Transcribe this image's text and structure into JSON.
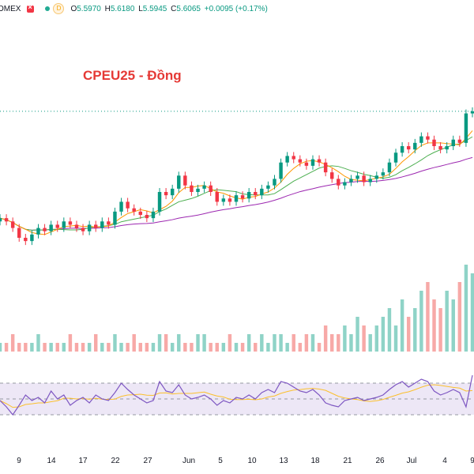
{
  "topbar": {
    "exchange": "OMEX",
    "d_badge": "D",
    "open_label": "O",
    "open": "5.5970",
    "high_label": "H",
    "high": "5.6180",
    "low_label": "L",
    "low": "5.5945",
    "close_label": "C",
    "close": "5.6065",
    "change": "+0.0095 (+0.17%)"
  },
  "annotation": "CPEU25 - Đồng",
  "colors": {
    "up": "#089981",
    "down": "#f23645",
    "ma_long": "#9c27b0",
    "ma_mid": "#4caf50",
    "ma_short": "#ff9800",
    "rsi": "#7e57c2",
    "rsi_ma": "#fbc02d",
    "title": "#e53935"
  },
  "chart_data": {
    "type": "line",
    "series": [
      {
        "values": [
          5.28,
          5.27,
          5.25,
          5.22,
          5.21,
          5.23,
          5.25,
          5.24,
          5.26,
          5.25,
          5.27,
          5.26,
          5.25,
          5.24,
          5.26,
          5.25,
          5.27,
          5.26,
          5.3,
          5.33,
          5.31,
          5.3,
          5.29,
          5.28,
          5.3,
          5.36,
          5.35,
          5.37,
          5.41,
          5.38,
          5.36,
          5.37,
          5.38,
          5.36,
          5.33,
          5.34,
          5.33,
          5.35,
          5.34,
          5.36,
          5.35,
          5.37,
          5.38,
          5.4,
          5.45,
          5.47,
          5.46,
          5.45,
          5.44,
          5.46,
          5.45,
          5.42,
          5.4,
          5.38,
          5.39,
          5.4,
          5.41,
          5.39,
          5.4,
          5.41,
          5.42,
          5.45,
          5.48,
          5.5,
          5.49,
          5.51,
          5.53,
          5.52,
          5.5,
          5.49,
          5.5,
          5.52,
          5.51,
          5.6,
          5.6065
        ]
      }
    ],
    "volume": [
      1,
      1,
      2,
      1,
      1,
      1,
      2,
      1,
      1,
      1,
      1,
      2,
      1,
      1,
      1,
      2,
      1,
      1,
      2,
      1,
      1,
      2,
      1,
      1,
      1,
      2,
      2,
      1,
      2,
      1,
      1,
      2,
      2,
      1,
      1,
      1,
      2,
      1,
      1,
      2,
      1,
      2,
      1,
      2,
      2,
      1,
      2,
      1,
      2,
      2,
      1,
      3,
      2,
      2,
      3,
      2,
      4,
      3,
      2,
      3,
      4,
      5,
      3,
      6,
      4,
      5,
      7,
      8,
      6,
      5,
      7,
      6,
      8,
      10,
      9
    ],
    "rsi": [
      48,
      40,
      30,
      42,
      55,
      48,
      52,
      45,
      60,
      50,
      55,
      42,
      48,
      52,
      45,
      55,
      50,
      48,
      58,
      70,
      62,
      55,
      50,
      45,
      48,
      72,
      60,
      58,
      68,
      55,
      50,
      52,
      55,
      50,
      42,
      48,
      45,
      52,
      50,
      55,
      50,
      58,
      62,
      58,
      72,
      70,
      65,
      60,
      58,
      62,
      55,
      45,
      42,
      40,
      48,
      50,
      52,
      48,
      50,
      52,
      55,
      62,
      68,
      72,
      65,
      70,
      75,
      72,
      60,
      55,
      58,
      62,
      58,
      40,
      80
    ],
    "x_tick_labels": [
      "9",
      "14",
      "17",
      "22",
      "27",
      "Jun",
      "5",
      "10",
      "13",
      "18",
      "21",
      "26",
      "Jul",
      "4",
      "9"
    ]
  }
}
